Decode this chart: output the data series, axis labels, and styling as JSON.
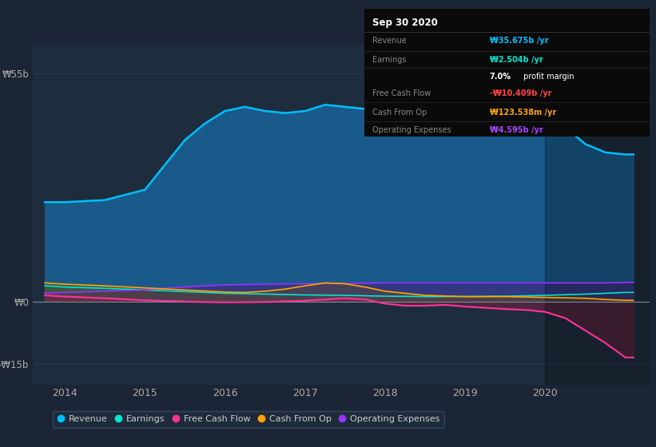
{
  "bg_color": "#1c2535",
  "plot_bg_color": "#1e2d3d",
  "grid_color": "#2a3d52",
  "ylim": [
    -20,
    62
  ],
  "yticks": [
    55,
    0,
    -15
  ],
  "ytick_labels": [
    "₩55b",
    "₩0",
    "-₩15b"
  ],
  "xlim": [
    2013.6,
    2021.3
  ],
  "xticks": [
    2014,
    2015,
    2016,
    2017,
    2018,
    2019,
    2020
  ],
  "series": {
    "revenue": {
      "color": "#00bfff",
      "fill_color": "#1a5a8a",
      "fill_alpha": 1.0,
      "x": [
        2013.75,
        2014.0,
        2014.5,
        2015.0,
        2015.25,
        2015.5,
        2015.75,
        2016.0,
        2016.25,
        2016.5,
        2016.75,
        2017.0,
        2017.25,
        2017.5,
        2017.75,
        2018.0,
        2018.25,
        2018.5,
        2018.75,
        2019.0,
        2019.25,
        2019.5,
        2019.75,
        2020.0,
        2020.25,
        2020.5,
        2020.75,
        2021.0,
        2021.1
      ],
      "y": [
        24,
        24,
        24.5,
        27,
        33,
        39,
        43,
        46,
        47,
        46,
        45.5,
        46,
        47.5,
        47,
        46.5,
        46.5,
        47.5,
        49,
        49.5,
        50,
        50.5,
        50,
        49,
        46,
        42,
        38,
        36,
        35.5,
        35.5
      ]
    },
    "earnings": {
      "color": "#00e5cc",
      "fill_color": "#2a5a4a",
      "fill_alpha": 0.7,
      "x": [
        2013.75,
        2014.0,
        2014.5,
        2015.0,
        2015.5,
        2016.0,
        2016.5,
        2017.0,
        2017.5,
        2018.0,
        2018.5,
        2019.0,
        2019.5,
        2020.0,
        2020.5,
        2020.75,
        2021.0,
        2021.1
      ],
      "y": [
        3.8,
        3.5,
        3.2,
        2.8,
        2.4,
        2.0,
        1.8,
        1.6,
        1.5,
        1.3,
        1.2,
        1.2,
        1.3,
        1.5,
        1.8,
        2.0,
        2.2,
        2.2
      ]
    },
    "free_cash_flow": {
      "color": "#ff3399",
      "fill_color": "#7a2040",
      "fill_alpha": 0.5,
      "x": [
        2013.75,
        2014.0,
        2014.5,
        2015.0,
        2015.5,
        2016.0,
        2016.5,
        2017.0,
        2017.25,
        2017.5,
        2017.75,
        2018.0,
        2018.25,
        2018.5,
        2018.75,
        2019.0,
        2019.25,
        2019.5,
        2019.75,
        2020.0,
        2020.25,
        2020.5,
        2020.75,
        2021.0,
        2021.1
      ],
      "y": [
        1.5,
        1.2,
        0.8,
        0.3,
        0.0,
        -0.2,
        -0.1,
        0.2,
        0.5,
        0.8,
        0.5,
        -0.5,
        -1.0,
        -1.0,
        -0.8,
        -1.2,
        -1.5,
        -1.8,
        -2.0,
        -2.5,
        -4.0,
        -7.0,
        -10.0,
        -13.5,
        -13.5
      ]
    },
    "cash_from_op": {
      "color": "#ffa500",
      "fill_color": "#7a5200",
      "fill_alpha": 0.3,
      "x": [
        2013.75,
        2014.0,
        2014.5,
        2015.0,
        2015.5,
        2016.0,
        2016.25,
        2016.5,
        2016.75,
        2017.0,
        2017.25,
        2017.5,
        2017.75,
        2018.0,
        2018.5,
        2019.0,
        2019.5,
        2020.0,
        2020.5,
        2020.75,
        2021.0,
        2021.1
      ],
      "y": [
        4.5,
        4.2,
        3.8,
        3.3,
        2.8,
        2.3,
        2.2,
        2.5,
        3.0,
        3.8,
        4.5,
        4.3,
        3.5,
        2.5,
        1.5,
        1.2,
        1.2,
        1.0,
        0.8,
        0.5,
        0.3,
        0.3
      ]
    },
    "operating_expenses": {
      "color": "#9933ff",
      "fill_color": "#4a1a7a",
      "fill_alpha": 0.5,
      "x": [
        2013.75,
        2014.0,
        2014.5,
        2015.0,
        2015.25,
        2015.5,
        2015.75,
        2016.0,
        2016.5,
        2017.0,
        2017.5,
        2018.0,
        2018.5,
        2019.0,
        2019.5,
        2020.0,
        2020.5,
        2020.75,
        2021.0,
        2021.1
      ],
      "y": [
        2.0,
        2.2,
        2.5,
        2.8,
        3.2,
        3.5,
        3.8,
        4.0,
        4.2,
        4.3,
        4.4,
        4.5,
        4.5,
        4.5,
        4.5,
        4.5,
        4.5,
        4.5,
        4.6,
        4.6
      ]
    }
  },
  "legend": [
    {
      "label": "Revenue",
      "color": "#00bfff"
    },
    {
      "label": "Earnings",
      "color": "#00e5cc"
    },
    {
      "label": "Free Cash Flow",
      "color": "#ff3399"
    },
    {
      "label": "Cash From Op",
      "color": "#ffa500"
    },
    {
      "label": "Operating Expenses",
      "color": "#9933ff"
    }
  ],
  "shaded_region_start": 2020.0,
  "shaded_region_color": "#000000",
  "shaded_region_alpha": 0.25,
  "info_box": {
    "date": "Sep 30 2020",
    "rows": [
      {
        "label": "Revenue",
        "value": "₩35.675b /yr",
        "value_color": "#00bfff"
      },
      {
        "label": "Earnings",
        "value": "₩2.504b /yr",
        "value_color": "#00e5cc"
      },
      {
        "label": "",
        "value": "7.0%",
        "value_color": "#ffffff",
        "suffix": " profit margin",
        "suffix_color": "#ffffff"
      },
      {
        "label": "Free Cash Flow",
        "value": "-₩10.409b /yr",
        "value_color": "#ff4444"
      },
      {
        "label": "Cash From Op",
        "value": "₩123.538m /yr",
        "value_color": "#ffa500"
      },
      {
        "label": "Operating Expenses",
        "value": "₩4.595b /yr",
        "value_color": "#aa44ff"
      }
    ]
  }
}
